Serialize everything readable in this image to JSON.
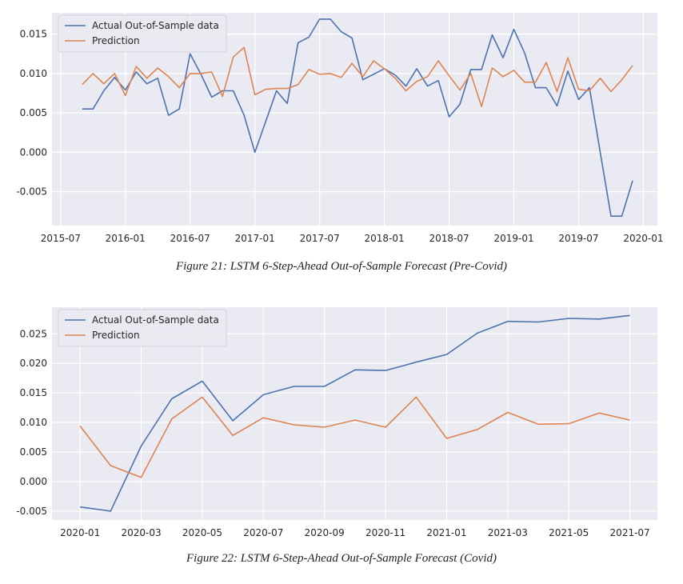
{
  "chart_data": [
    {
      "type": "line",
      "caption": "Figure 21: LSTM 6-Step-Ahead Out-of-Sample Forecast (Pre-Covid)",
      "x_start": "2015-09",
      "x_tick_labels": [
        "2015-07",
        "2016-01",
        "2016-07",
        "2017-01",
        "2017-07",
        "2018-01",
        "2018-07",
        "2019-01",
        "2019-07",
        "2020-01"
      ],
      "y_tick_labels": [
        "0.015",
        "0.010",
        "0.005",
        "0.000",
        "-0.005"
      ],
      "ylim": [
        -0.0093,
        0.0177
      ],
      "grid": true,
      "legend_position": "top-left",
      "series": [
        {
          "name": "Actual Out-of-Sample data",
          "color": "#4c72b0",
          "values": [
            0.0055,
            0.0055,
            0.0078,
            0.0095,
            0.0079,
            0.0102,
            0.0087,
            0.0094,
            0.0047,
            0.0055,
            0.0125,
            0.0099,
            0.007,
            0.0078,
            0.0078,
            0.0047,
            0.0,
            0.0039,
            0.0078,
            0.0062,
            0.0139,
            0.0146,
            0.0169,
            0.0169,
            0.0153,
            0.0145,
            0.0092,
            0.0099,
            0.0106,
            0.0098,
            0.0084,
            0.0106,
            0.0084,
            0.0091,
            0.0045,
            0.0061,
            0.0105,
            0.0105,
            0.0149,
            0.012,
            0.0156,
            0.0126,
            0.0082,
            0.0082,
            0.0059,
            0.0103,
            0.0067,
            0.0082,
            0.0,
            -0.0081,
            -0.0081,
            -0.0036
          ]
        },
        {
          "name": "Prediction",
          "color": "#dd8452",
          "values": [
            0.0086,
            0.01,
            0.0087,
            0.01,
            0.0072,
            0.0109,
            0.0094,
            0.0107,
            0.0096,
            0.0082,
            0.01,
            0.01,
            0.0102,
            0.0071,
            0.0121,
            0.0133,
            0.0073,
            0.008,
            0.0081,
            0.0081,
            0.0086,
            0.0105,
            0.0099,
            0.01,
            0.0095,
            0.0113,
            0.0096,
            0.0116,
            0.0106,
            0.0094,
            0.0078,
            0.009,
            0.0096,
            0.0116,
            0.0097,
            0.0079,
            0.01,
            0.0058,
            0.0107,
            0.0096,
            0.0104,
            0.0089,
            0.0089,
            0.0114,
            0.0077,
            0.012,
            0.008,
            0.0078,
            0.0094,
            0.0077,
            0.0092,
            0.011
          ]
        }
      ]
    },
    {
      "type": "line",
      "caption": "Figure 22: LSTM 6-Step-Ahead Out-of-Sample Forecast (Covid)",
      "x_start": "2020-01",
      "x_tick_labels": [
        "2020-01",
        "2020-03",
        "2020-05",
        "2020-07",
        "2020-09",
        "2020-11",
        "2021-01",
        "2021-03",
        "2021-05",
        "2021-07"
      ],
      "y_tick_labels": [
        "0.025",
        "0.020",
        "0.015",
        "0.010",
        "0.005",
        "0.000",
        "-0.005"
      ],
      "ylim": [
        -0.0065,
        0.0295
      ],
      "grid": true,
      "legend_position": "top-left",
      "series": [
        {
          "name": "Actual Out-of-Sample data",
          "color": "#4c72b0",
          "values": [
            -0.0043,
            -0.005,
            0.006,
            0.014,
            0.017,
            0.0103,
            0.0147,
            0.0161,
            0.0161,
            0.0189,
            0.0188,
            0.0202,
            0.0215,
            0.0251,
            0.0271,
            0.027,
            0.0276,
            0.0275,
            0.0281
          ]
        },
        {
          "name": "Prediction",
          "color": "#dd8452",
          "values": [
            0.0094,
            0.0027,
            0.0007,
            0.0106,
            0.0143,
            0.0078,
            0.0108,
            0.0096,
            0.0092,
            0.0104,
            0.0092,
            0.0143,
            0.0073,
            0.0088,
            0.0117,
            0.0097,
            0.0098,
            0.0116,
            0.0104
          ]
        }
      ]
    }
  ]
}
